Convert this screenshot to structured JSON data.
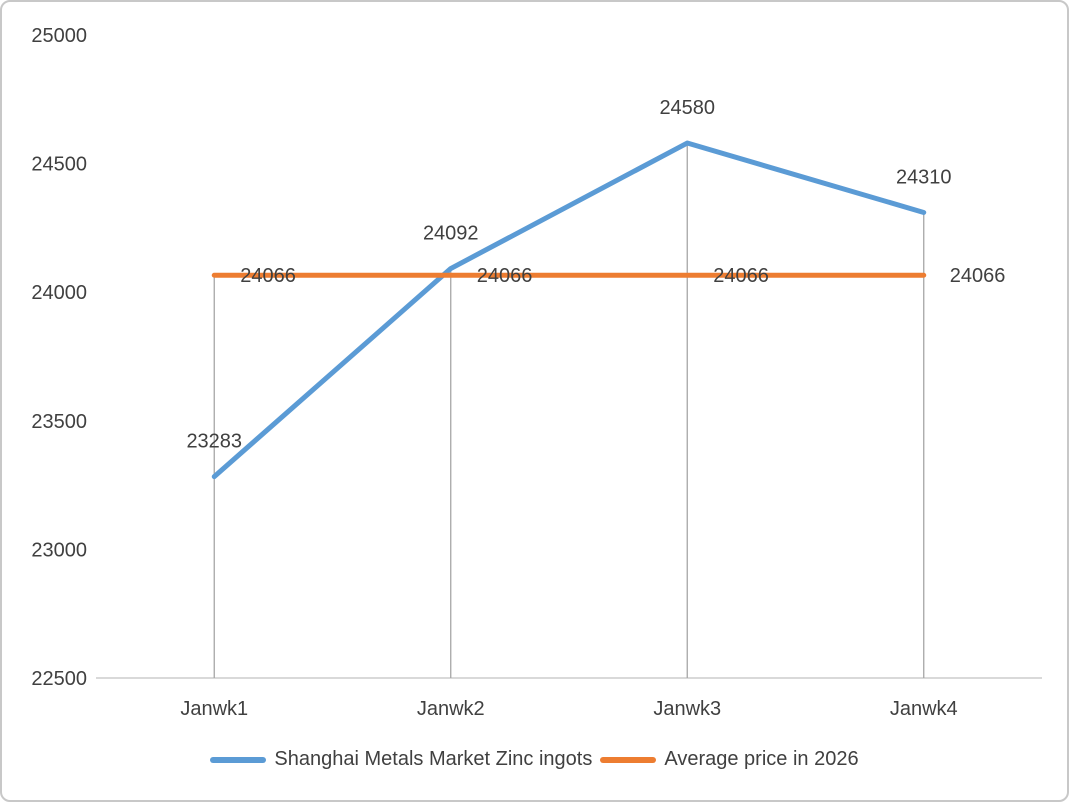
{
  "window": {
    "background_color": "#ffffff",
    "border_color": "#c8c8c8"
  },
  "chart_data": {
    "type": "line",
    "title": "",
    "xlabel": "",
    "ylabel": "",
    "categories": [
      "Janwk1",
      "Janwk2",
      "Janwk3",
      "Janwk4"
    ],
    "series": [
      {
        "name": "Shanghai Metals Market Zinc ingots",
        "values": [
          23283,
          24092,
          24580,
          24310
        ],
        "color": "#5B9BD5",
        "label_position": "above"
      },
      {
        "name": "Average price in 2026",
        "values": [
          24066,
          24066,
          24066,
          24066
        ],
        "color": "#ED7D31",
        "label_position": "right"
      }
    ],
    "ylim": [
      22500,
      25000
    ],
    "yticks": [
      22500,
      23000,
      23500,
      24000,
      24500,
      25000
    ],
    "grid": "off",
    "drop_lines": true,
    "data_labels": true,
    "legend_position": "bottom",
    "axis_line_color": "#D9D9D9",
    "drop_line_color": "#A6A6A6",
    "text_color": "#404040"
  }
}
